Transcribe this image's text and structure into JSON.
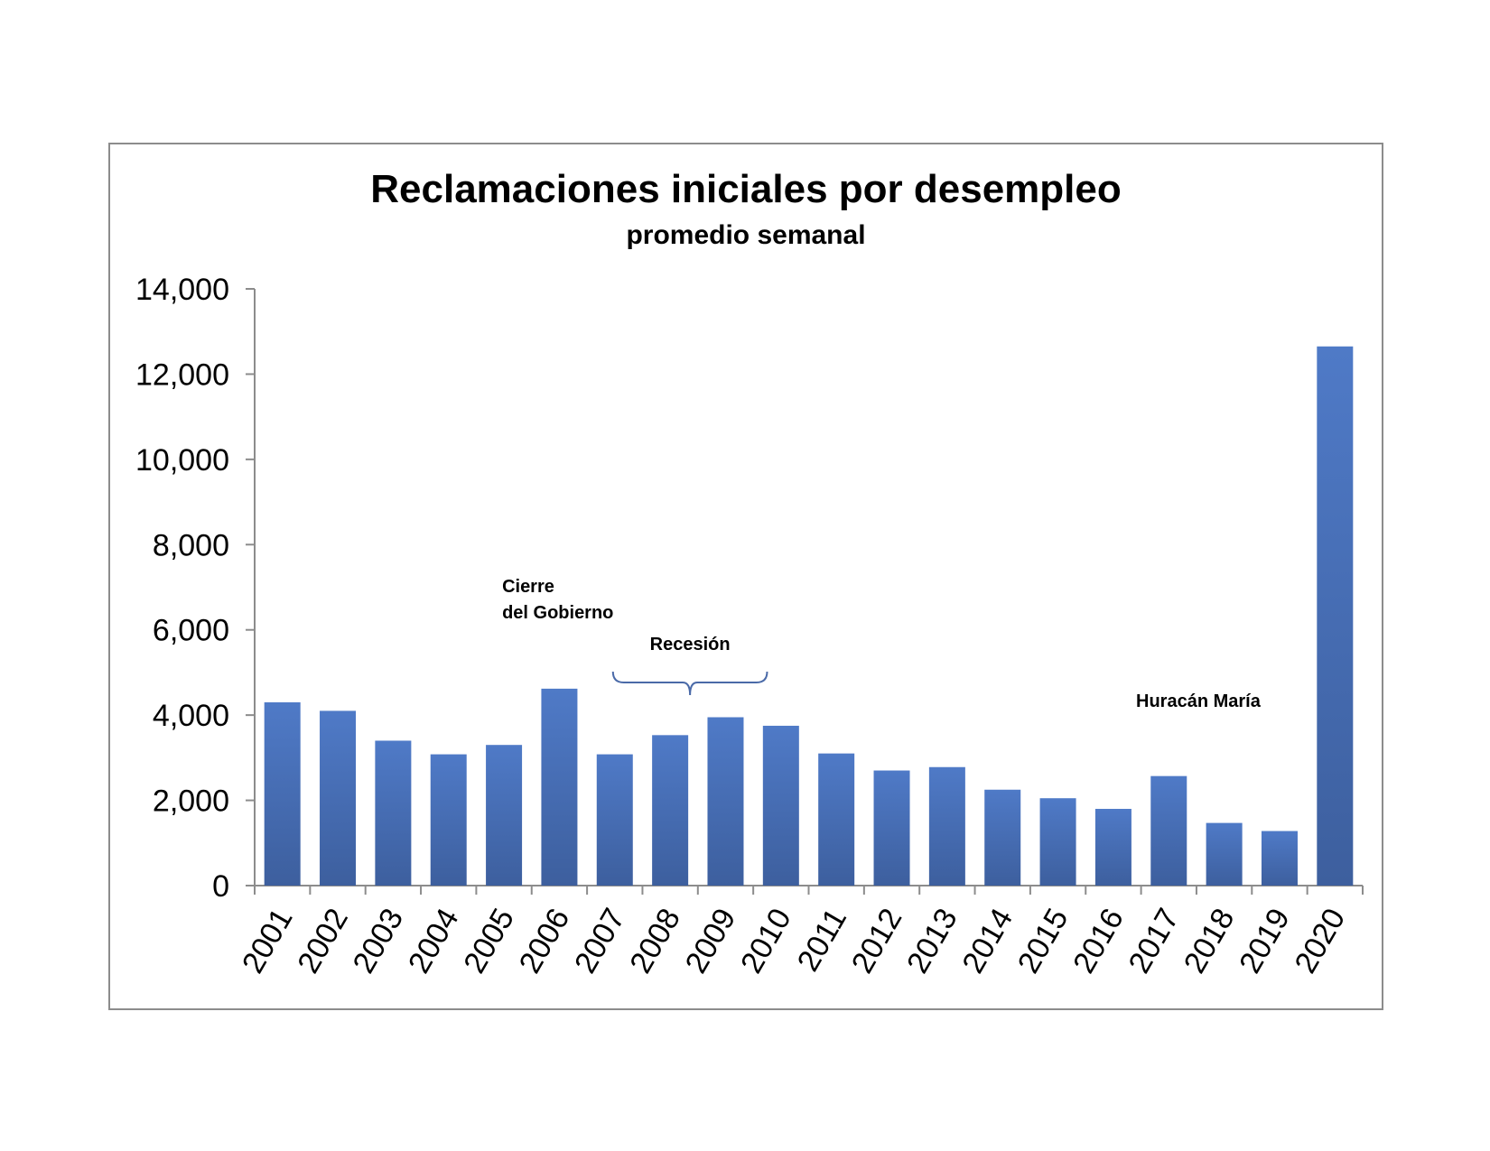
{
  "chart_data": {
    "type": "bar",
    "title": "Reclamaciones iniciales por desempleo",
    "subtitle": "promedio semanal",
    "xlabel": "",
    "ylabel": "",
    "ylim": [
      0,
      14000
    ],
    "yticks": [
      0,
      2000,
      4000,
      6000,
      8000,
      10000,
      12000,
      14000
    ],
    "ytick_labels": [
      "0",
      "2,000",
      "4,000",
      "6,000",
      "8,000",
      "10,000",
      "12,000",
      "14,000"
    ],
    "grid": false,
    "legend": "none",
    "bar_color": "#4f7ac7",
    "bar_color_dark": "#3d5f9e",
    "categories": [
      "2001",
      "2002",
      "2003",
      "2004",
      "2005",
      "2006",
      "2007",
      "2008",
      "2009",
      "2010",
      "2011",
      "2012",
      "2013",
      "2014",
      "2015",
      "2016",
      "2017",
      "2018",
      "2019",
      "2020"
    ],
    "values": [
      4300,
      4100,
      3400,
      3080,
      3300,
      4620,
      3080,
      3530,
      3950,
      3750,
      3100,
      2700,
      2780,
      2250,
      2050,
      1800,
      2570,
      1470,
      1280,
      12650
    ],
    "annotations": [
      {
        "lines": [
          "Cierre",
          "del Gobierno"
        ],
        "near": "2005"
      },
      {
        "lines": [
          "Recesión"
        ],
        "span": [
          "2007",
          "2009"
        ]
      },
      {
        "lines": [
          "Huracán María"
        ],
        "near": "2016"
      }
    ]
  }
}
